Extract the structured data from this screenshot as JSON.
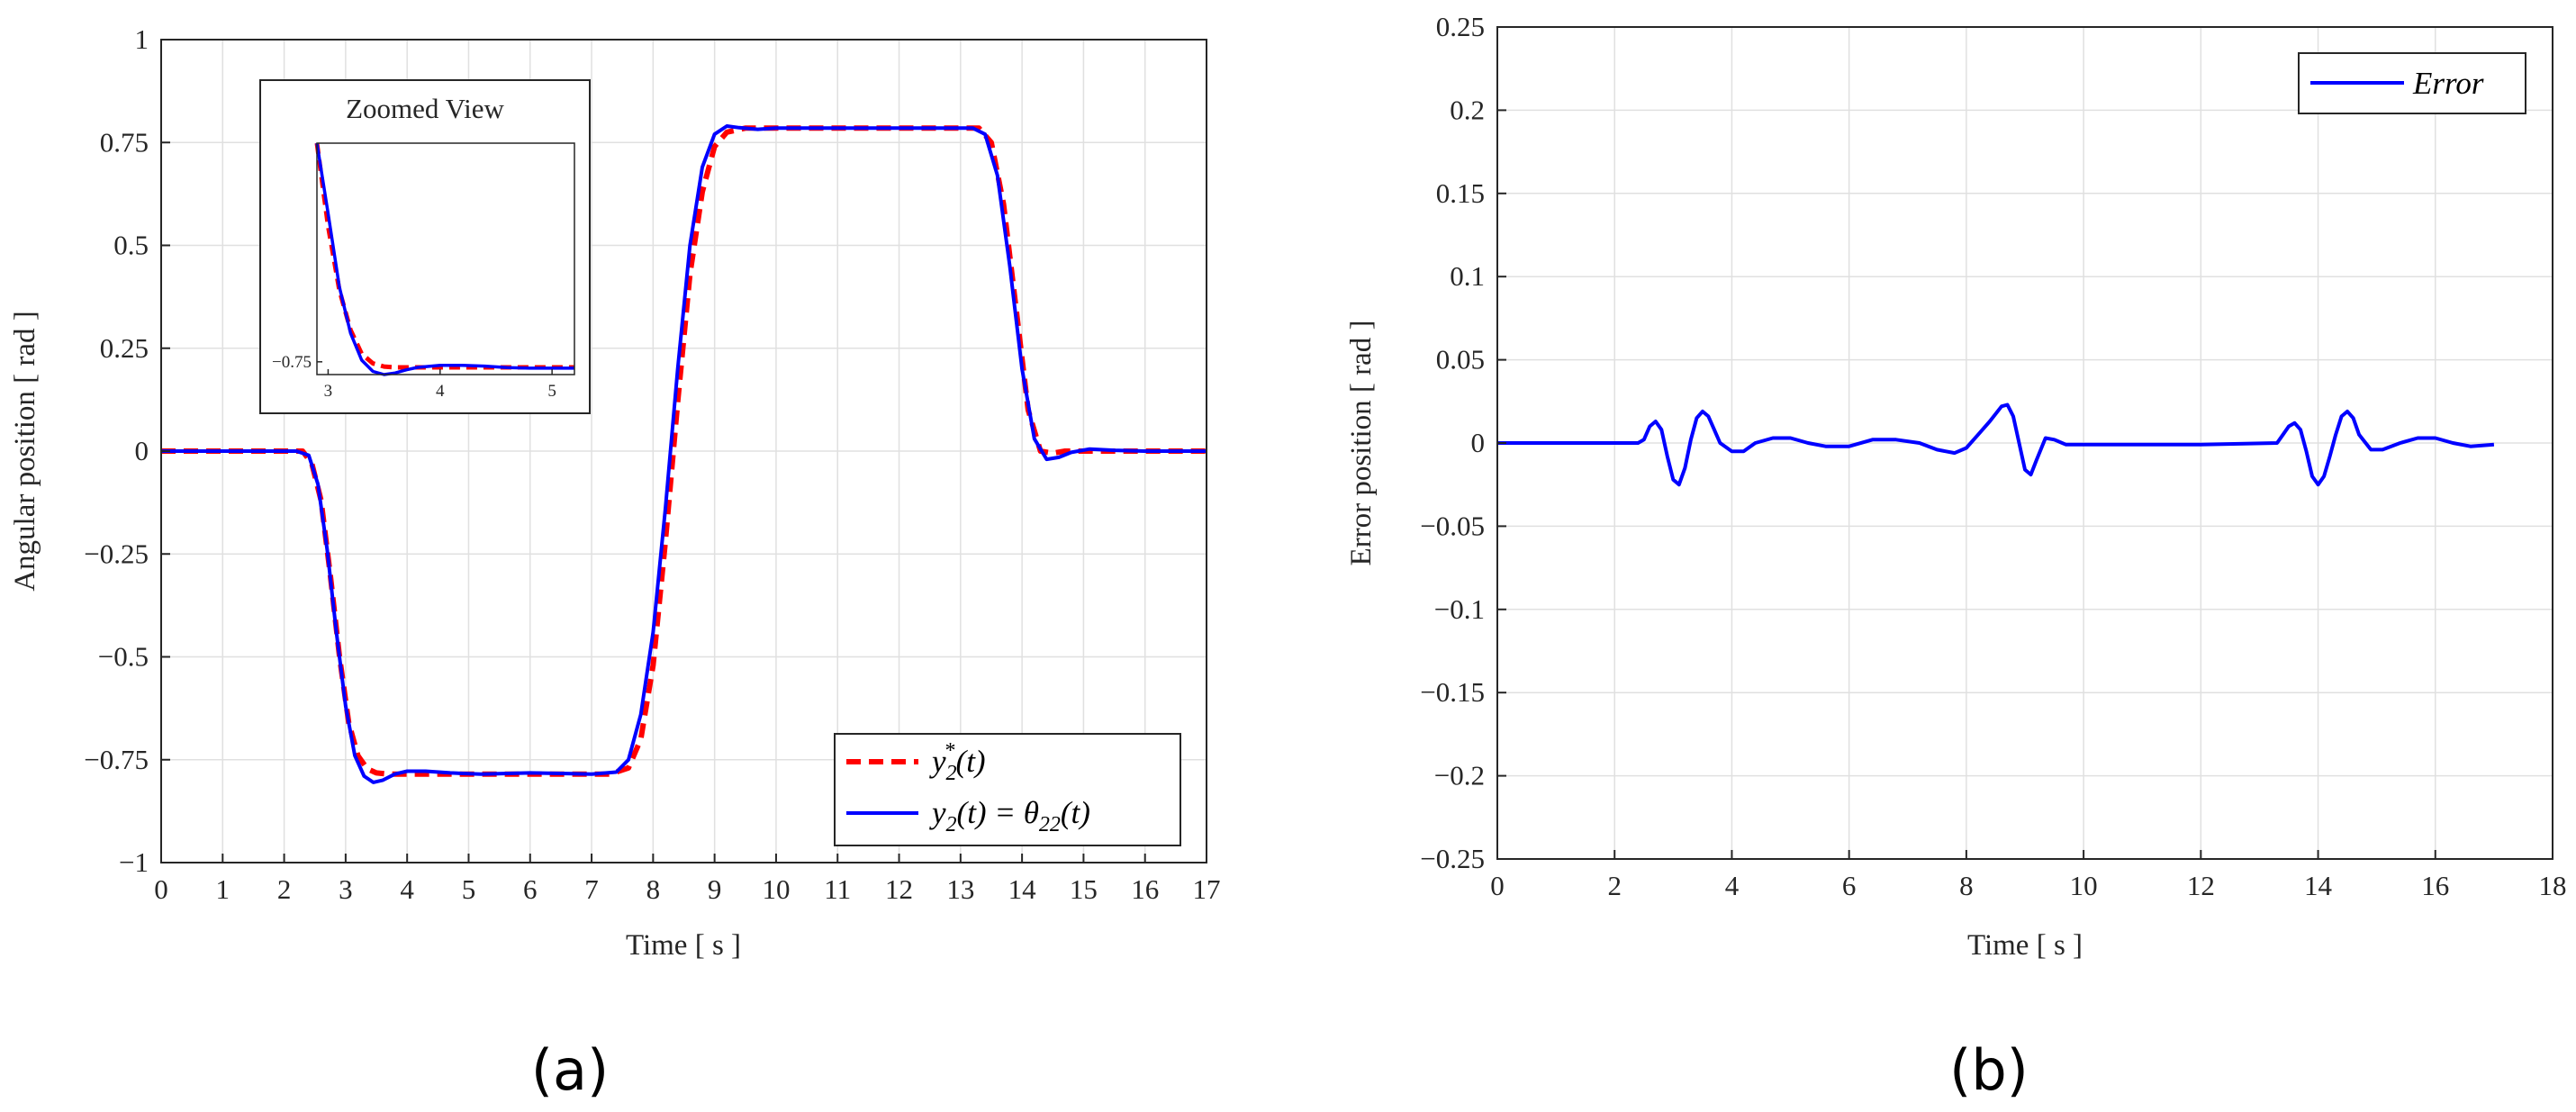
{
  "chart_data": [
    {
      "type": "line",
      "panel_label": "(a)",
      "xlabel": "Time [ s ]",
      "ylabel": "Angular position [ rad ]",
      "xlim": [
        0,
        17
      ],
      "ylim": [
        -1,
        1
      ],
      "grid": true,
      "x_ticks": [
        0,
        1,
        2,
        3,
        4,
        5,
        6,
        7,
        8,
        9,
        10,
        11,
        12,
        13,
        14,
        15,
        16,
        17
      ],
      "x_tick_labels": [
        "0",
        "1",
        "2",
        "3",
        "4",
        "5",
        "6",
        "7",
        "8",
        "9",
        "10",
        "11",
        "12",
        "13",
        "14",
        "15",
        "16",
        "17"
      ],
      "y_ticks": [
        -1,
        -0.75,
        -0.5,
        -0.25,
        0,
        0.25,
        0.5,
        0.75,
        1
      ],
      "y_tick_labels": [
        "−1",
        "−0.75",
        "−0.5",
        "−0.25",
        "0",
        "0.25",
        "0.5",
        "0.75",
        "1"
      ],
      "legend_position": "bottom-right",
      "series": [
        {
          "name": "y2*(t)",
          "legend_main": "y",
          "legend_sub": "2",
          "legend_sup": "*",
          "legend_tail": "(t)",
          "color": "#ff0000",
          "style": "dashed",
          "x": [
            0,
            2.3,
            2.45,
            2.6,
            2.75,
            2.9,
            3.05,
            3.2,
            3.35,
            3.5,
            3.7,
            4.0,
            7.3,
            7.6,
            7.8,
            8.0,
            8.2,
            8.4,
            8.6,
            8.8,
            9.0,
            9.2,
            9.5,
            10.0,
            13.3,
            13.5,
            13.7,
            13.9,
            14.1,
            14.3,
            14.5,
            14.7,
            15.0,
            17
          ],
          "y": [
            0,
            0,
            -0.03,
            -0.12,
            -0.3,
            -0.5,
            -0.66,
            -0.74,
            -0.772,
            -0.782,
            -0.785,
            -0.785,
            -0.785,
            -0.77,
            -0.7,
            -0.52,
            -0.22,
            0.12,
            0.43,
            0.63,
            0.74,
            0.775,
            0.785,
            0.785,
            0.785,
            0.75,
            0.6,
            0.35,
            0.1,
            0.0,
            -0.005,
            0,
            0,
            0
          ]
        },
        {
          "name": "y2(t) = θ22(t)",
          "legend_main": "y",
          "legend_sub": "2",
          "legend_tail": "(t) = θ",
          "legend_sub2": "22",
          "legend_tail2": "(t)",
          "color": "#0000ff",
          "style": "solid",
          "x": [
            0,
            2.2,
            2.4,
            2.55,
            2.7,
            2.85,
            3.0,
            3.15,
            3.3,
            3.45,
            3.6,
            3.8,
            4.0,
            4.3,
            4.7,
            5.2,
            6.0,
            7.0,
            7.4,
            7.6,
            7.8,
            8.0,
            8.2,
            8.4,
            8.6,
            8.8,
            9.0,
            9.2,
            9.4,
            9.7,
            10.0,
            13.2,
            13.4,
            13.6,
            13.8,
            14.0,
            14.2,
            14.4,
            14.6,
            14.8,
            15.1,
            15.5,
            16.0,
            17
          ],
          "y": [
            0,
            0,
            -0.01,
            -0.08,
            -0.24,
            -0.44,
            -0.62,
            -0.74,
            -0.79,
            -0.805,
            -0.8,
            -0.785,
            -0.778,
            -0.778,
            -0.782,
            -0.785,
            -0.782,
            -0.785,
            -0.78,
            -0.75,
            -0.64,
            -0.44,
            -0.14,
            0.2,
            0.5,
            0.69,
            0.77,
            0.79,
            0.786,
            0.782,
            0.785,
            0.785,
            0.77,
            0.67,
            0.45,
            0.2,
            0.03,
            -0.02,
            -0.015,
            -0.003,
            0.005,
            0.002,
            0,
            0
          ]
        }
      ],
      "inset": {
        "title": "Zoomed View",
        "xlim": [
          2.9,
          5.2
        ],
        "ylim": [
          -0.83,
          0.62
        ],
        "x_tick_labels": [
          "3",
          "4",
          "5"
        ],
        "x_ticks": [
          3,
          4,
          5
        ],
        "y_tick_labels": [
          "−0.75"
        ],
        "y_ticks": [
          -0.75
        ],
        "series": [
          {
            "name": "y2*(t) zoom",
            "color": "#ff0000",
            "style": "dashed",
            "x": [
              2.9,
              3.0,
              3.1,
              3.2,
              3.3,
              3.4,
              3.5,
              3.6,
              3.8,
              4.0,
              4.5,
              5.2
            ],
            "y": [
              0.62,
              0.1,
              -0.3,
              -0.55,
              -0.7,
              -0.76,
              -0.78,
              -0.785,
              -0.785,
              -0.785,
              -0.785,
              -0.785
            ]
          },
          {
            "name": "y2(t) zoom",
            "color": "#0000ff",
            "style": "solid",
            "x": [
              2.9,
              3.0,
              3.1,
              3.2,
              3.3,
              3.4,
              3.5,
              3.6,
              3.7,
              3.8,
              4.0,
              4.2,
              4.4,
              4.6,
              4.8,
              5.0,
              5.2
            ],
            "y": [
              0.62,
              0.18,
              -0.28,
              -0.57,
              -0.74,
              -0.81,
              -0.83,
              -0.82,
              -0.8,
              -0.785,
              -0.772,
              -0.772,
              -0.777,
              -0.786,
              -0.79,
              -0.79,
              -0.79
            ]
          }
        ]
      }
    },
    {
      "type": "line",
      "panel_label": "(b)",
      "xlabel": "Time [ s ]",
      "ylabel": "Error position [ rad ]",
      "xlim": [
        0,
        18
      ],
      "ylim": [
        -0.25,
        0.25
      ],
      "grid": true,
      "x_ticks": [
        0,
        2,
        4,
        6,
        8,
        10,
        12,
        14,
        16,
        18
      ],
      "x_tick_labels": [
        "0",
        "2",
        "4",
        "6",
        "8",
        "10",
        "12",
        "14",
        "16",
        "18"
      ],
      "y_ticks": [
        -0.25,
        -0.2,
        -0.15,
        -0.1,
        -0.05,
        0,
        0.05,
        0.1,
        0.15,
        0.2,
        0.25
      ],
      "y_tick_labels": [
        "−0.25",
        "−0.2",
        "−0.15",
        "−0.1",
        "−0.05",
        "0",
        "0.05",
        "0.1",
        "0.15",
        "0.2",
        "0.25"
      ],
      "legend_position": "top-right",
      "series": [
        {
          "name": "Error",
          "color": "#0000ff",
          "style": "solid",
          "x": [
            0,
            2.4,
            2.5,
            2.6,
            2.7,
            2.8,
            2.9,
            3.0,
            3.1,
            3.2,
            3.3,
            3.4,
            3.5,
            3.6,
            3.7,
            3.8,
            4.0,
            4.2,
            4.4,
            4.7,
            5.0,
            5.3,
            5.6,
            6.0,
            6.4,
            6.8,
            7.2,
            7.5,
            7.8,
            8.0,
            8.2,
            8.4,
            8.6,
            8.7,
            8.8,
            8.9,
            9.0,
            9.1,
            9.2,
            9.35,
            9.5,
            9.7,
            10.0,
            12.0,
            13.3,
            13.4,
            13.5,
            13.6,
            13.7,
            13.8,
            13.9,
            14.0,
            14.1,
            14.2,
            14.3,
            14.4,
            14.5,
            14.6,
            14.7,
            14.9,
            15.1,
            15.4,
            15.7,
            16.0,
            16.3,
            16.6,
            17.0
          ],
          "y": [
            0,
            0,
            0.002,
            0.01,
            0.013,
            0.008,
            -0.008,
            -0.022,
            -0.025,
            -0.015,
            0.002,
            0.015,
            0.019,
            0.016,
            0.008,
            0.0,
            -0.005,
            -0.005,
            0.0,
            0.003,
            0.003,
            0.0,
            -0.002,
            -0.002,
            0.002,
            0.002,
            0.0,
            -0.004,
            -0.006,
            -0.003,
            0.005,
            0.013,
            0.022,
            0.023,
            0.016,
            0.0,
            -0.016,
            -0.019,
            -0.01,
            0.003,
            0.002,
            -0.001,
            -0.001,
            -0.001,
            0.0,
            0.005,
            0.01,
            0.012,
            0.008,
            -0.005,
            -0.02,
            -0.025,
            -0.02,
            -0.008,
            0.005,
            0.016,
            0.019,
            0.015,
            0.005,
            -0.004,
            -0.004,
            0.0,
            0.003,
            0.003,
            0.0,
            -0.002,
            -0.001
          ]
        }
      ]
    }
  ]
}
